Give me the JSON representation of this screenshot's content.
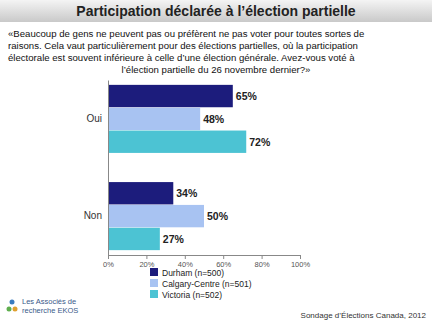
{
  "chart_data": {
    "type": "bar",
    "orientation": "horizontal",
    "title": "Participation déclarée à l’élection partielle",
    "subtitle": [
      "«Beaucoup de gens ne peuvent pas ou préfèrent ne pas voter pour toutes sortes de",
      "raisons. Cela vaut particulièrement pour des élections partielles, où la participation",
      "électorale est souvent  inférieure à celle d’une élection générale. Avez-vous voté à",
      "l’élection partielle du 26 novembre dernier?»"
    ],
    "categories": [
      "Oui",
      "Non"
    ],
    "series": [
      {
        "name": "Durham (n=500)",
        "color": "#1c1c7c",
        "values": [
          65,
          34
        ],
        "value_labels": [
          "65%",
          "34%"
        ]
      },
      {
        "name": "Calgary-Centre (n=501)",
        "color": "#a8c3f2",
        "values": [
          48,
          50
        ],
        "value_labels": [
          "48%",
          "50%"
        ]
      },
      {
        "name": "Victoria (n=502)",
        "color": "#4cc3d3",
        "values": [
          72,
          27
        ],
        "value_labels": [
          "72%",
          "27%"
        ]
      }
    ],
    "xlim": [
      0,
      100
    ],
    "xticks": [
      {
        "value": 0,
        "label": "0%"
      },
      {
        "value": 20,
        "label": "20%"
      },
      {
        "value": 40,
        "label": "40%"
      },
      {
        "value": 60,
        "label": "60%"
      },
      {
        "value": 80,
        "label": "80%"
      },
      {
        "value": 100,
        "label": "100%"
      }
    ],
    "data_labels": true,
    "grid": false,
    "legend": "bottom",
    "annotations": [
      "Sondage d’Élections Canada, 2012",
      "Les Associés de",
      "recherche EKOS"
    ]
  }
}
